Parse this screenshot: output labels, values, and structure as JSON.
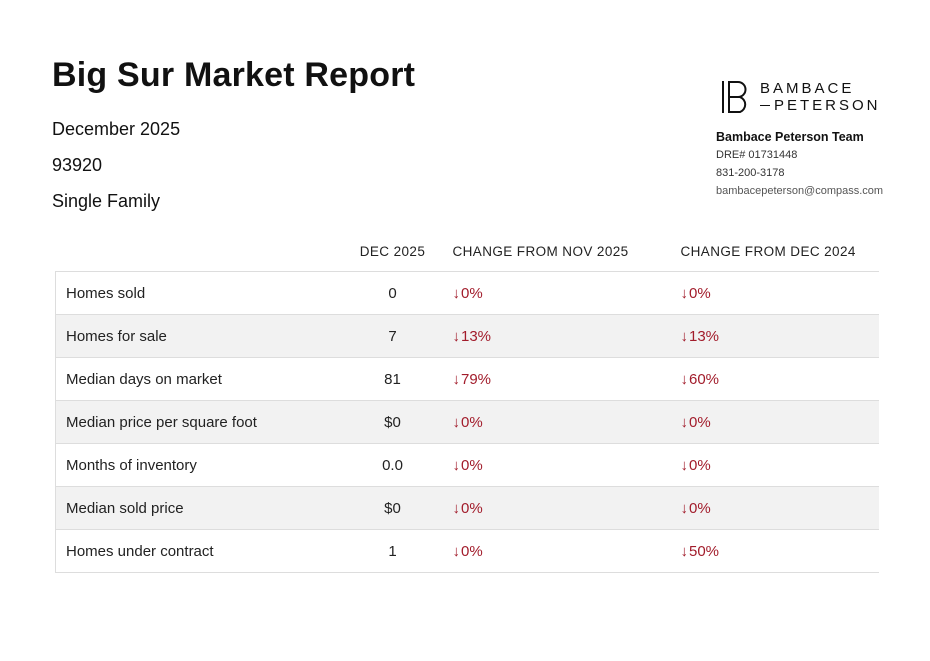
{
  "report": {
    "title": "Big Sur Market Report",
    "period": "December 2025",
    "zip": "93920",
    "property_type": "Single Family"
  },
  "brand": {
    "name_line1": "BAMBACE",
    "name_line2": "PETERSON",
    "team": "Bambace Peterson Team",
    "dre": "DRE# 01731448",
    "phone": "831-200-3178",
    "email": "bambacepeterson@compass.com"
  },
  "table": {
    "value_header": "DEC 2025",
    "change_nov_header": "CHANGE FROM NOV 2025",
    "change_dec_header": "CHANGE FROM DEC 2024",
    "arrow": "↓",
    "rows": [
      {
        "label": "Homes sold",
        "value": "0",
        "change_nov": "0%",
        "change_dec": "0%"
      },
      {
        "label": "Homes for sale",
        "value": "7",
        "change_nov": "13%",
        "change_dec": "13%"
      },
      {
        "label": "Median days on market",
        "value": "81",
        "change_nov": "79%",
        "change_dec": "60%"
      },
      {
        "label": "Median price per square foot",
        "value": "$0",
        "change_nov": "0%",
        "change_dec": "0%"
      },
      {
        "label": "Months of inventory",
        "value": "0.0",
        "change_nov": "0%",
        "change_dec": "0%"
      },
      {
        "label": "Median sold price",
        "value": "$0",
        "change_nov": "0%",
        "change_dec": "0%"
      },
      {
        "label": "Homes under contract",
        "value": "1",
        "change_nov": "0%",
        "change_dec": "50%"
      }
    ]
  },
  "colors": {
    "accent_red": "#A21C2B",
    "row_alt_bg": "#F2F2F2"
  }
}
